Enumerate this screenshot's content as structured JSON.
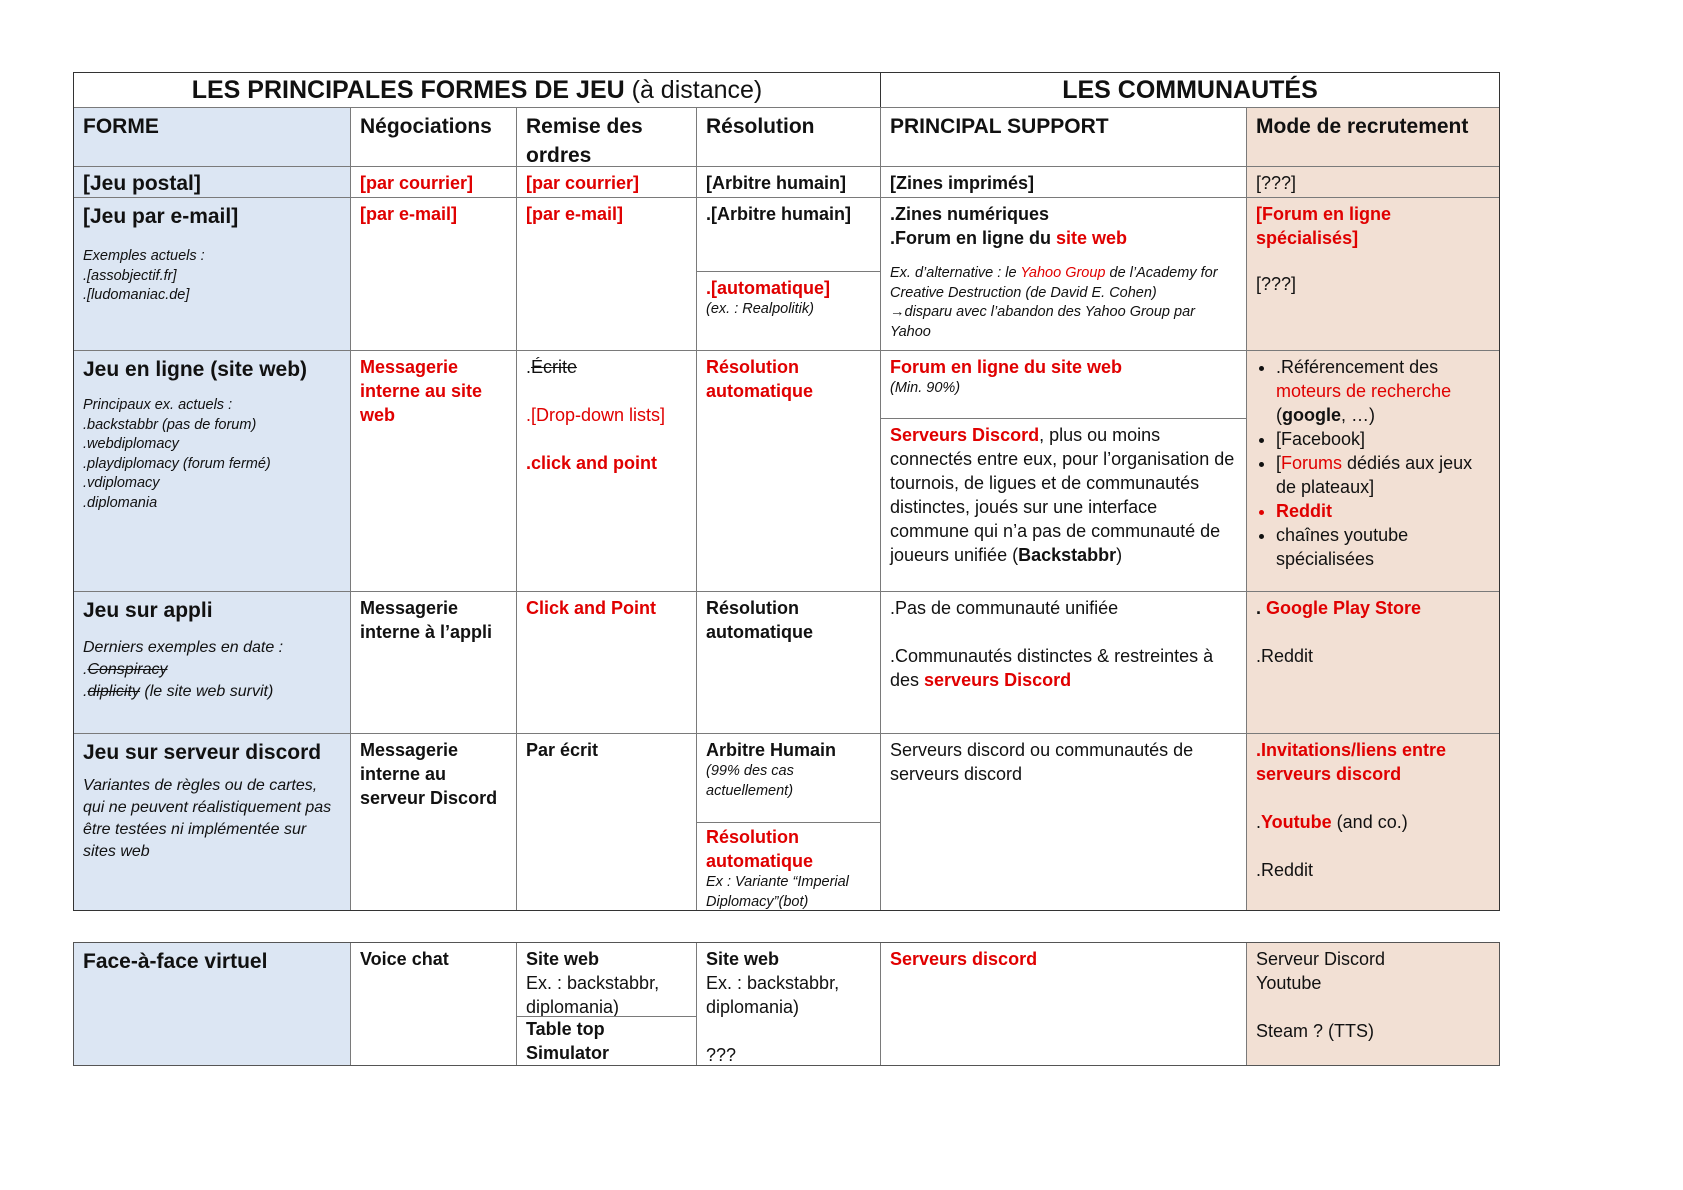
{
  "header": {
    "left_title": "LES PRINCIPALES FORMES DE JEU",
    "left_title_suffix": "(à distance)",
    "right_title": "LES COMMUNAUTÉS"
  },
  "columns": [
    "FORME",
    "Négociations",
    "Remise des ordres",
    "Résolution",
    "PRINCIPAL SUPPORT",
    "Mode de recrutement"
  ],
  "rows": {
    "postal": {
      "forme": "[Jeu postal]",
      "negociations": "[par courrier]",
      "remise": "[par courrier]",
      "resolution": "[Arbitre humain]",
      "support": "[Zines imprimés]",
      "recrutement": "[???]"
    },
    "email": {
      "forme": "[Jeu par e-mail]",
      "examples_label": "Exemples actuels :",
      "examples": [
        ".[assobjectif.fr]",
        ".[ludomaniac.de]"
      ],
      "negociations": "[par e-mail]",
      "remise": "[par e-mail]",
      "resolution_1": ".[Arbitre humain]",
      "resolution_2": ".[automatique]",
      "resolution_2_note": "(ex. : Realpolitik)",
      "support_1": ".Zines numériques",
      "support_2_pre": ".Forum en ligne du ",
      "support_2_red": "site web",
      "support_note_1": "Ex. d’alternative : le ",
      "support_note_red": "Yahoo Group",
      "support_note_2": " de l’Academy for Creative Destruction (de David E. Cohen)",
      "support_note_3": "disparu avec l’abandon des Yahoo Group par Yahoo",
      "recrutement_1": "[Forum en ligne spécialisés]",
      "recrutement_2": "[???]"
    },
    "en_ligne": {
      "forme": "Jeu en ligne (site web)",
      "examples_label": "Principaux ex. actuels :",
      "examples": [
        ".backstabbr (pas de forum)",
        ".webdiplomacy",
        ".playdiplomacy (forum fermé)",
        ".vdiplomacy",
        ".diplomania"
      ],
      "negociations": "Messagerie interne au site web",
      "remise_1_dot": ".",
      "remise_1": "Écrite",
      "remise_2": ".[Drop-down lists]",
      "remise_3": ".click and point",
      "resolution": "Résolution automatique",
      "support_1": "Forum en ligne du site web",
      "support_1_note": "(Min. 90%)",
      "support_2_red": "Serveurs Discord",
      "support_2_text": ", plus ou moins connectés entre eux, pour l’organisation de tournois, de ligues et de communautés distinctes, joués sur une interface commune qui n’a pas de communauté de joueurs unifiée (",
      "support_2_bold": "Backstabbr",
      "support_2_end": ")",
      "recrutement": {
        "item1_pre": ".Référencement des ",
        "item1_red": "moteurs de recherche",
        "item1_bold": "google",
        "item1_end": ", …)",
        "item2": "[Facebook]",
        "item3_open": "[",
        "item3_red": "Forums",
        "item3_rest": " dédiés aux jeux de plateaux]",
        "item4": "Reddit",
        "item5": "chaînes youtube spécialisées"
      }
    },
    "appli": {
      "forme": "Jeu sur appli",
      "examples_label": "Derniers exemples en date :",
      "example_1": "Conspiracy",
      "example_2": "diplicity",
      "example_2_note": " (le site web survit)",
      "negociations": "Messagerie interne à l’appli",
      "remise": "Click and Point",
      "resolution": "Résolution automatique",
      "support_1": ".Pas de communauté unifiée",
      "support_2_pre": ".Communautés distinctes & restreintes à des ",
      "support_2_red": "serveurs Discord",
      "recrutement_1_dot": ". ",
      "recrutement_1": "Google Play Store",
      "recrutement_2": ".Reddit"
    },
    "discord": {
      "forme": "Jeu sur serveur discord",
      "description": "Variantes de règles ou de cartes, qui ne peuvent réalistiquement pas être testées ni implémentée sur sites web",
      "negociations": "Messagerie interne au serveur Discord",
      "remise": "Par écrit",
      "resolution_1": "Arbitre Humain",
      "resolution_1_note": "(99% des cas actuellement)",
      "resolution_2": "Résolution automatique",
      "resolution_2_note": "Ex : Variante “Imperial Diplomacy”(bot)",
      "support": "Serveurs discord ou communautés de serveurs discord",
      "recrutement_1": ".Invitations/liens entre serveurs discord",
      "recrutement_2_dot": ".",
      "recrutement_2": "Youtube",
      "recrutement_2_rest": " (and co.)",
      "recrutement_3": ".Reddit"
    },
    "face_a_face": {
      "forme": "Face-à-face virtuel",
      "negociations": "Voice chat",
      "remise_1": "Site web",
      "remise_1_note": "Ex. : backstabbr, diplomania)",
      "remise_2": "Table top Simulator",
      "resolution_1": "Site web",
      "resolution_1_note": "Ex. : backstabbr, diplomania)",
      "resolution_2": "???",
      "support": "Serveurs discord",
      "recrutement_1": "Serveur Discord",
      "recrutement_2": "Youtube",
      "recrutement_3": "Steam ? (TTS)"
    }
  },
  "colors": {
    "forme_bg": "#dce6f3",
    "recrutement_bg": "#f2e0d4",
    "accent_red": "#e00000"
  }
}
